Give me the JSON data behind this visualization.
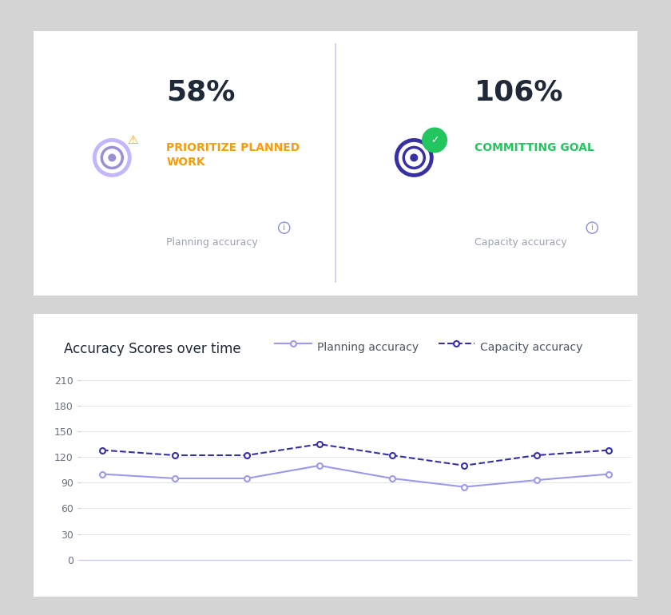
{
  "planning_pct": "58%",
  "capacity_pct": "106%",
  "planning_label": "PRIORITIZE PLANNED\nWORK",
  "capacity_label": "COMMITTING GOAL",
  "planning_sublabel": "Planning accuracy",
  "capacity_sublabel": "Capacity accuracy",
  "planning_color": "#F59E0B",
  "capacity_color": "#22C55E",
  "chart_title": "Accuracy Scores over time",
  "legend_planning": "Planning accuracy",
  "legend_capacity": "Capacity accuracy",
  "planning_line_color": "#9B99E8",
  "capacity_line_color": "#3730A3",
  "planning_data": [
    100,
    95,
    95,
    110,
    95,
    85,
    93,
    100
  ],
  "capacity_data": [
    128,
    122,
    122,
    135,
    122,
    110,
    122,
    128
  ],
  "y_ticks": [
    0,
    30,
    60,
    90,
    120,
    150,
    180,
    210
  ],
  "ylim": [
    0,
    230
  ],
  "card_bg": "#ffffff",
  "outer_bg": "#d4d4d4",
  "divider_color": "#c8cce8",
  "info_circle_color": "#8B8FD4",
  "planning_icon_outer": "#C4B5FD",
  "planning_icon_inner": "#9B8FD4",
  "capacity_icon_color": "#3730A3",
  "warning_color": "#F59E0B",
  "check_color": "#22C55E",
  "pct_fontsize": 26,
  "label_fontsize": 10,
  "sublabel_fontsize": 9,
  "title_fontsize": 12,
  "tick_fontsize": 9
}
